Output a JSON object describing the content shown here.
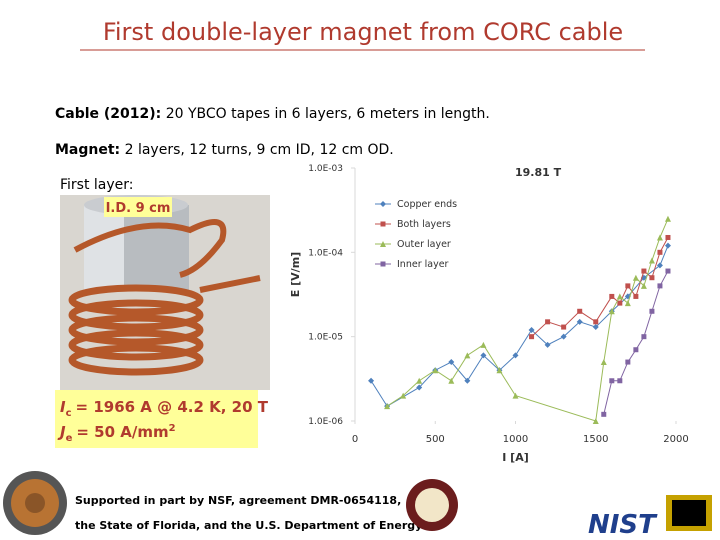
{
  "slide": {
    "title": "First double-layer magnet from CORC cable",
    "cable": {
      "label": "Cable (2012):",
      "text": "20 YBCO tapes in 6 layers, 6 meters in length."
    },
    "magnet": {
      "label": "Magnet:",
      "text": "2 layers, 12 turns, 9 cm ID, 12 cm OD."
    },
    "photo": {
      "caption": "First layer:",
      "tag": "I.D. 9 cm"
    },
    "critical_current": {
      "symbol": "I",
      "subscript": "c",
      "text": "= 1966 A @ 4.2 K, 20 T"
    },
    "current_density": {
      "symbol": "J",
      "subscript": "e",
      "text": "= 50 A/mm",
      "superscript": "2"
    },
    "footer": [
      "Supported in part by NSF, agreement DMR-0654118,",
      "the State of Florida, and the U.S. Department of Energy."
    ],
    "logo": "NIST"
  },
  "chart_data": {
    "type": "scatter-line",
    "annotation": "19.81 T",
    "x_label": "I [A]",
    "y_label": "E [V/m]",
    "log_y": true,
    "legend": "top-center",
    "xlim": [
      0,
      2000
    ],
    "xticks": [
      0,
      500,
      1000,
      1500,
      2000
    ],
    "ylim": [
      1e-06,
      0.001
    ],
    "yticks": [
      {
        "value": 0.001,
        "label": "1.0E-03"
      },
      {
        "value": 0.0001,
        "label": "1.0E-04"
      },
      {
        "value": 1e-05,
        "label": "1.0E-05"
      },
      {
        "value": 1e-06,
        "label": "1.0E-06"
      }
    ],
    "series": [
      {
        "name": "Copper ends",
        "color": "#4f81bd",
        "marker": "diamond",
        "x": [
          100,
          200,
          400,
          500,
          600,
          700,
          800,
          900,
          1000,
          1100,
          1200,
          1300,
          1400,
          1500,
          1600,
          1700,
          1800,
          1900,
          1950
        ],
        "values": [
          3e-06,
          1.5e-06,
          2.5e-06,
          4e-06,
          5e-06,
          3e-06,
          6e-06,
          4e-06,
          6e-06,
          1.2e-05,
          8e-06,
          1e-05,
          1.5e-05,
          1.3e-05,
          2e-05,
          3e-05,
          5e-05,
          7e-05,
          0.00012
        ]
      },
      {
        "name": "Both layers",
        "color": "#c0504d",
        "marker": "square",
        "x": [
          1100,
          1200,
          1300,
          1400,
          1500,
          1600,
          1650,
          1700,
          1750,
          1800,
          1850,
          1900,
          1950
        ],
        "values": [
          1e-05,
          1.5e-05,
          1.3e-05,
          2e-05,
          1.5e-05,
          3e-05,
          2.5e-05,
          4e-05,
          3e-05,
          6e-05,
          5e-05,
          0.0001,
          0.00015
        ]
      },
      {
        "name": "Outer layer",
        "color": "#9bbb59",
        "marker": "triangle",
        "x": [
          200,
          300,
          400,
          500,
          600,
          700,
          800,
          900,
          1000,
          1500,
          1550,
          1600,
          1650,
          1700,
          1750,
          1800,
          1850,
          1900,
          1950
        ],
        "values": [
          1.5e-06,
          2e-06,
          3e-06,
          4e-06,
          3e-06,
          6e-06,
          8e-06,
          4e-06,
          2e-06,
          1e-06,
          5e-06,
          2e-05,
          3e-05,
          2.5e-05,
          5e-05,
          4e-05,
          8e-05,
          0.00015,
          0.00025
        ]
      },
      {
        "name": "Inner layer",
        "color": "#8064a2",
        "marker": "square",
        "x": [
          1550,
          1600,
          1650,
          1700,
          1750,
          1800,
          1850,
          1900,
          1950
        ],
        "values": [
          1.2e-06,
          3e-06,
          3e-06,
          5e-06,
          7e-06,
          1e-05,
          2e-05,
          4e-05,
          6e-05
        ]
      }
    ]
  }
}
